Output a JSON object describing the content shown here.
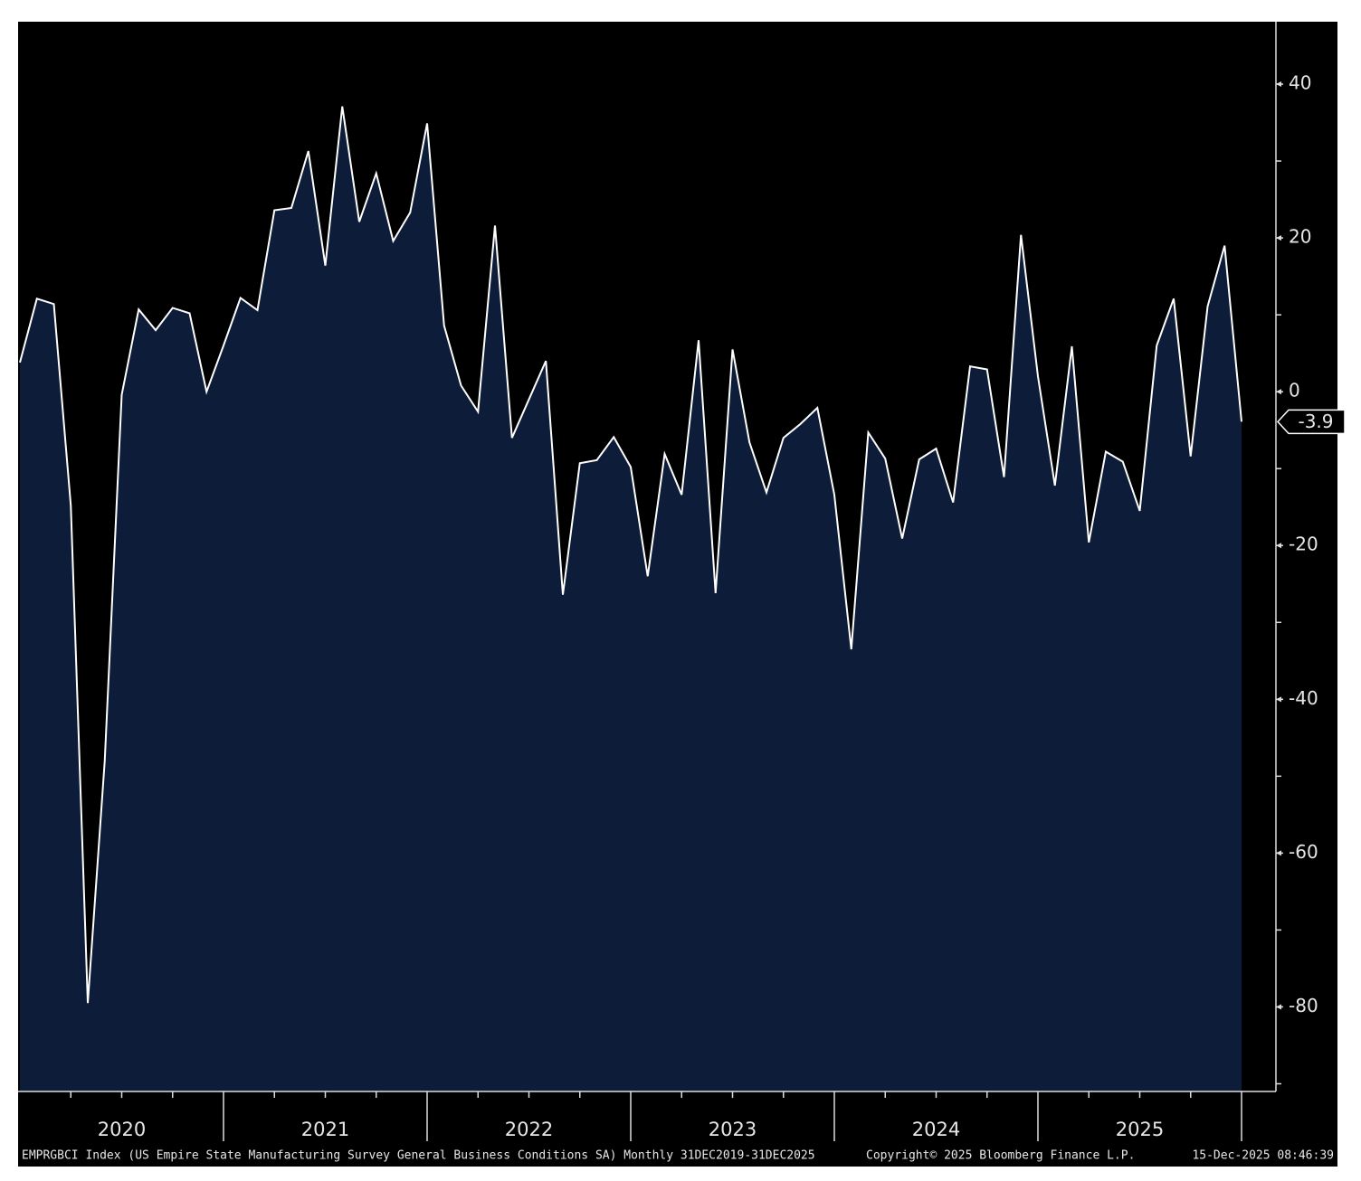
{
  "chart_data": {
    "type": "area",
    "series": [
      {
        "name": "EMPRGBCI Index",
        "color": "#ffffff",
        "fill": "#0d1c38",
        "values": [
          3.8,
          12.1,
          11.4,
          -14.8,
          -79.5,
          -48,
          -0.4,
          10.7,
          8,
          10.9,
          10.2,
          0,
          6,
          12.2,
          10.6,
          23.6,
          23.9,
          31.3,
          16.4,
          37.1,
          22.1,
          28.4,
          19.6,
          23.3,
          34.9,
          8.6,
          0.8,
          -2.6,
          21.6,
          -6,
          -1,
          4,
          -26.4,
          -9.3,
          -8.9,
          -5.9,
          -9.8,
          -24,
          -8.1,
          -13.4,
          6.7,
          -26.2,
          5.5,
          -6.6,
          -13.1,
          -6,
          -4.2,
          -2.1,
          -13.4,
          -33.5,
          -5.3,
          -8.7,
          -19.1,
          -8.8,
          -7.4,
          -14.4,
          3.3,
          2.9,
          -11.1,
          20.4,
          2,
          -12.2,
          5.9,
          -19.6,
          -7.8,
          -9.1,
          -15.5,
          6,
          12.1,
          -8.4,
          11.1,
          19,
          -3.9
        ]
      }
    ],
    "year_labels": [
      "2020",
      "2021",
      "2022",
      "2023",
      "2024",
      "2025"
    ],
    "ylim": [
      -91,
      48
    ],
    "yticks": [
      40,
      20,
      0,
      -20,
      -40,
      -60,
      -80
    ],
    "yminorticks": [
      30,
      10,
      -10,
      -30,
      -50,
      -70,
      -90
    ],
    "footer": {
      "left": "EMPRGBCI Index (US Empire State Manufacturing Survey General Business Conditions SA) Monthly 31DEC2019-31DEC2025",
      "center": "Copyright© 2025 Bloomberg Finance L.P.",
      "right": "15-Dec-2025 08:46:39"
    }
  }
}
